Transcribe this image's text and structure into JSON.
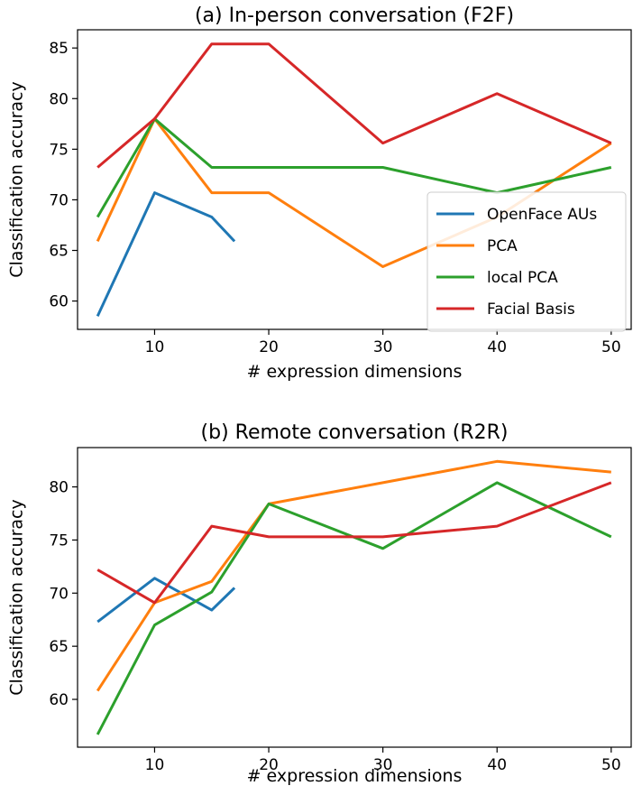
{
  "chart_data": [
    {
      "type": "line",
      "title": "(a) In-person conversation (F2F)",
      "xlabel": "# expression dimensions",
      "ylabel": "Classification accuracy",
      "xlim": [
        3.25,
        51.75
      ],
      "ylim": [
        57.2,
        86.8
      ],
      "xticks": [
        10,
        20,
        30,
        40,
        50
      ],
      "yticks": [
        60,
        65,
        70,
        75,
        80,
        85
      ],
      "grid": false,
      "legend": "center-right",
      "series": [
        {
          "name": "OpenFace AUs",
          "color": "#1f77b4",
          "x": [
            5,
            10,
            15,
            17
          ],
          "y": [
            58.5,
            70.7,
            68.3,
            65.9
          ]
        },
        {
          "name": "PCA",
          "color": "#ff7f0e",
          "x": [
            5,
            10,
            15,
            20,
            30,
            40,
            50
          ],
          "y": [
            65.9,
            78.0,
            70.7,
            70.7,
            63.4,
            68.3,
            75.6
          ]
        },
        {
          "name": "local PCA",
          "color": "#2ca02c",
          "x": [
            5,
            10,
            15,
            20,
            30,
            40,
            50
          ],
          "y": [
            68.3,
            78.0,
            73.2,
            73.2,
            73.2,
            70.7,
            73.2
          ]
        },
        {
          "name": "Facial Basis",
          "color": "#d62728",
          "x": [
            5,
            10,
            15,
            20,
            30,
            40,
            50
          ],
          "y": [
            73.2,
            78.0,
            85.4,
            85.4,
            75.6,
            80.5,
            75.6
          ]
        }
      ]
    },
    {
      "type": "line",
      "title": "(b) Remote conversation (R2R)",
      "xlabel": "# expression dimensions",
      "ylabel": "Classification accuracy",
      "xlim": [
        3.25,
        51.75
      ],
      "ylim": [
        55.5,
        83.7
      ],
      "xticks": [
        10,
        20,
        30,
        40,
        50
      ],
      "yticks": [
        60,
        65,
        70,
        75,
        80
      ],
      "grid": false,
      "legend": "none",
      "series": [
        {
          "name": "OpenFace AUs",
          "color": "#1f77b4",
          "x": [
            5,
            10,
            15,
            17
          ],
          "y": [
            67.3,
            71.4,
            68.4,
            70.5
          ]
        },
        {
          "name": "PCA",
          "color": "#ff7f0e",
          "x": [
            5,
            10,
            15,
            20,
            30,
            40,
            50
          ],
          "y": [
            60.8,
            69.1,
            71.1,
            78.4,
            80.4,
            82.4,
            81.4
          ]
        },
        {
          "name": "local PCA",
          "color": "#2ca02c",
          "x": [
            5,
            10,
            15,
            20,
            30,
            40,
            50
          ],
          "y": [
            56.7,
            67.0,
            70.1,
            78.4,
            74.2,
            80.4,
            75.3
          ]
        },
        {
          "name": "Facial Basis",
          "color": "#d62728",
          "x": [
            5,
            10,
            15,
            20,
            30,
            40,
            50
          ],
          "y": [
            72.2,
            69.1,
            76.3,
            75.3,
            75.3,
            76.3,
            80.4
          ]
        }
      ]
    }
  ]
}
